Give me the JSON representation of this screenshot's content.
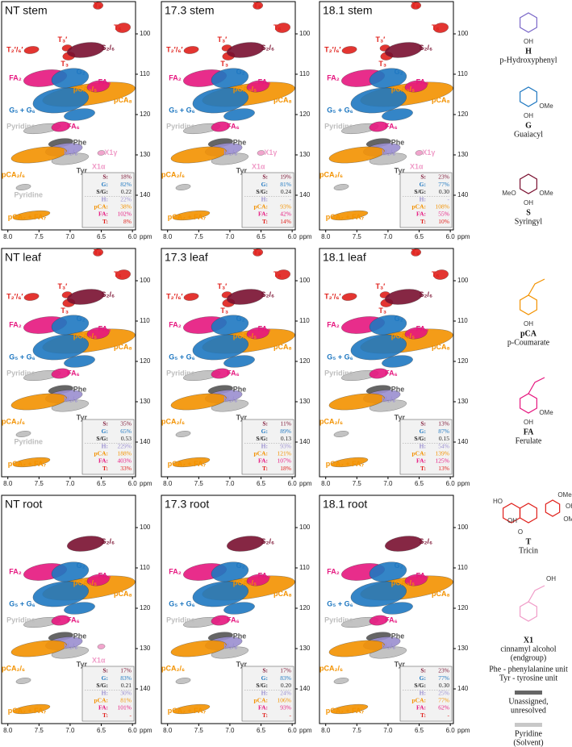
{
  "panels": [
    {
      "title": "NT stem",
      "labels": [
        "T₈",
        "T₆",
        "T₂′/₆′",
        "T₃′",
        "T₃",
        "S₂/₆",
        "FA₂",
        "G₂",
        "pCA₃/₅",
        "FA₈",
        "pCA₈",
        "G₅ + G₆",
        "Pyridine",
        "FA₆",
        "Phe",
        "H₂/₆",
        "Tyr",
        "pCA₂/₆",
        "X1γ",
        "X1α",
        "Pyridine",
        "pCA₇ + FA₇"
      ],
      "stats": [
        "18%",
        "82%",
        "0.22",
        "22%",
        "38%",
        "102%",
        "8%"
      ]
    },
    {
      "title": "17.3 stem",
      "labels": [
        "T₈",
        "T₆",
        "T₂′/₆′",
        "T₃′",
        "T₃",
        "S₂/₆",
        "FA₂",
        "G₂",
        "pCA₃/₅",
        "FA₈",
        "pCA₈",
        "G₅ + G₆",
        "Pyridine",
        "FA₆",
        "Phe",
        "H₂/₆",
        "Tyr",
        "pCA₂/₆",
        "X1γ",
        "X1α",
        "pCA₇ + FA₇"
      ],
      "stats": [
        "19%",
        "81%",
        "0.24",
        "-",
        "93%",
        "42%",
        "14%"
      ]
    },
    {
      "title": "18.1 stem",
      "labels": [
        "T₈",
        "T₆",
        "T₂′/₆′",
        "T₃′",
        "T₃",
        "S₂/₆",
        "FA₂",
        "G₂",
        "pCA₃/₅",
        "FA₈",
        "pCA₈",
        "G₅ + G₆",
        "Pyridine",
        "FA₆",
        "Phe",
        "H₂/₆",
        "Tyr",
        "pCA₂/₆",
        "X1γ",
        "X1α",
        "pCA₇ + FA₇"
      ],
      "stats": [
        "23%",
        "77%",
        "0.30",
        "-",
        "108%",
        "55%",
        "10%"
      ]
    },
    {
      "title": "NT leaf",
      "labels": [
        "T₈",
        "T₆",
        "T₂′/₆′",
        "T₃′",
        "T₃",
        "S₂/₆",
        "FA₂",
        "G₂",
        "pCA₃/₅",
        "FA₈",
        "pCA₈",
        "G₅ + G₆",
        "Pyridine",
        "FA₆",
        "Phe",
        "H₂/₆",
        "Tyr",
        "pCA₂/₆",
        "Pyridine",
        "pCA₇ + FA₇"
      ],
      "stats": [
        "35%",
        "65%",
        "0.53",
        "229%",
        "188%",
        "403%",
        "33%"
      ]
    },
    {
      "title": "17.3 leaf",
      "labels": [
        "T₈",
        "T₆",
        "T₂′/₆′",
        "T₃′",
        "T₃",
        "S₂/₆",
        "FA₂",
        "G₂",
        "pCA₃/₅",
        "FA₈",
        "pCA₈",
        "G₅ + G₆",
        "Pyridine",
        "FA₆",
        "Phe",
        "H₂/₆",
        "Tyr",
        "pCA₂/₆",
        "pCA₇ + FA₇"
      ],
      "stats": [
        "11%",
        "89%",
        "0.13",
        "93%",
        "121%",
        "107%",
        "18%"
      ]
    },
    {
      "title": "18.1 leaf",
      "labels": [
        "T₈",
        "T₆",
        "T₂′/₆′",
        "T₃′",
        "T₃",
        "S₂/₆",
        "FA₂",
        "G₂",
        "pCA₃/₅",
        "FA₈",
        "pCA₈",
        "G₅ + G₆",
        "Pyridine",
        "FA₆",
        "Phe",
        "H₂/₆",
        "Tyr",
        "pCA₂/₆",
        "pCA₇ + FA₇"
      ],
      "stats": [
        "13%",
        "87%",
        "0.15",
        "54%",
        "139%",
        "125%",
        "13%"
      ]
    },
    {
      "title": "NT root",
      "labels": [
        "S₂/₆",
        "FA₂",
        "G₂",
        "pCA₃/₅",
        "FA₈",
        "pCA₈",
        "G₅ + G₆",
        "Pyridine",
        "FA₆",
        "Phe",
        "H₂/₆",
        "Tyr",
        "pCA₂/₆",
        "X1α",
        "pCA₇ + FA₇"
      ],
      "stats": [
        "17%",
        "83%",
        "0.21",
        "30%",
        "81%",
        "101%",
        "-"
      ]
    },
    {
      "title": "17.3 root",
      "labels": [
        "S₂/₆",
        "FA₂",
        "G₂",
        "pCA₃/₅",
        "FA₈",
        "pCA₈",
        "G₅ + G₆",
        "Pyridine",
        "FA₆",
        "Phe",
        "H₂/₆",
        "Tyr",
        "pCA₂/₆",
        "pCA₇ + FA₇"
      ],
      "stats": [
        "17%",
        "83%",
        "0.20",
        "24%",
        "106%",
        "93%",
        "-"
      ]
    },
    {
      "title": "18.1 root",
      "labels": [
        "S₂/₆",
        "FA₂",
        "G₂",
        "pCA₃/₅",
        "FA₈",
        "pCA₈",
        "G₅ + G₆",
        "Pyridine",
        "FA₆",
        "Phe",
        "H₂/₆",
        "Tyr",
        "pCA₂/₆",
        "pCA₇ + FA₇"
      ],
      "stats": [
        "23%",
        "77%",
        "0.30",
        "25%",
        "77%",
        "62%",
        "-"
      ]
    }
  ],
  "stat_labels": [
    "S:",
    "G:",
    "S/G:",
    "H:",
    "pCA:",
    "FA:",
    "T:"
  ],
  "x_ticks": [
    "8.0",
    "7.5",
    "7.0",
    "6.5",
    "6.0"
  ],
  "x_unit": "ppm",
  "y_ticks": [
    "100",
    "110",
    "120",
    "130",
    "140"
  ],
  "structures": [
    {
      "symbol": "H",
      "name": "p-Hydroxyphenyl",
      "subs": [
        "OH"
      ]
    },
    {
      "symbol": "G",
      "name": "Guaiacyl",
      "subs": [
        "OH",
        "OMe"
      ]
    },
    {
      "symbol": "S",
      "name": "Syringyl",
      "subs": [
        "MeO",
        "OH",
        "OMe"
      ]
    },
    {
      "symbol": "pCA",
      "name": "p-Coumarate",
      "subs": [
        "OH"
      ]
    },
    {
      "symbol": "FA",
      "name": "Ferulate",
      "subs": [
        "OH",
        "OMe"
      ]
    },
    {
      "symbol": "T",
      "name": "Tricin",
      "subs": [
        "HO",
        "OH",
        "O",
        "OMe",
        "OH",
        "OMe"
      ]
    },
    {
      "symbol": "X1",
      "name": "cinnamyl alcohol",
      "name2": "(endgroup)",
      "subs": [
        "OH"
      ]
    }
  ],
  "notes": [
    "Phe - phenylalanine unit",
    "Tyr - tyrosine unit"
  ],
  "legend": [
    {
      "lines": [
        "Unassigned,",
        "unresolved"
      ]
    },
    {
      "lines": [
        "Pyridine",
        "(Solvent)"
      ]
    }
  ]
}
